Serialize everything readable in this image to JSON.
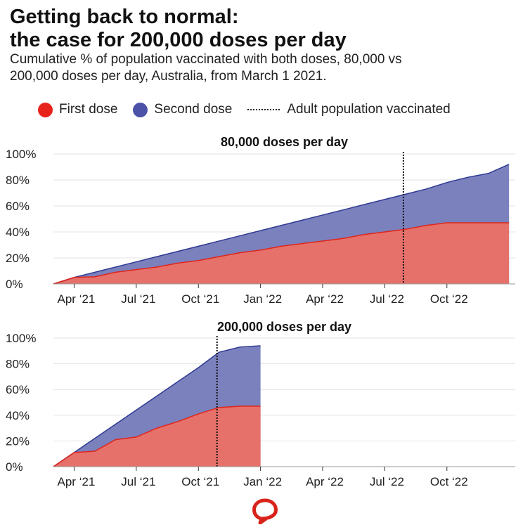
{
  "title_line1": "Getting back to normal:",
  "title_line2": "the case for 200,000 doses per day",
  "subtitle_line1": "Cumulative % of population vaccinated with both doses, 80,000 vs",
  "subtitle_line2": "200,000 doses per day, Australia, from March 1 2021.",
  "legend": {
    "first_dose": "First dose",
    "second_dose": "Second dose",
    "adult_line": "Adult population vaccinated"
  },
  "colors": {
    "first_dose": "#e5716a",
    "first_dose_line": "#e0251b",
    "second_dose": "#7a81bd",
    "second_dose_line": "#2f3a92",
    "legend_first": "#e8231b",
    "legend_second": "#4b52a8",
    "logo": "#d8231b"
  },
  "chart_data": [
    {
      "type": "area",
      "title": "80,000 doses per day",
      "x_unit": "months since 1 Mar 2021",
      "xlim": [
        0,
        22.3
      ],
      "ylim": [
        0,
        100
      ],
      "yticks": [
        0,
        20,
        40,
        60,
        80,
        100
      ],
      "ytick_labels": [
        "0%",
        "20%",
        "40%",
        "60%",
        "80%",
        "100%"
      ],
      "xticks": [
        1,
        4,
        7,
        10,
        13,
        16,
        19
      ],
      "xtick_labels": [
        "Apr ‘21",
        "Jul ‘21",
        "Oct ‘21",
        "Jan ‘22",
        "Apr ‘22",
        "Jul ‘22",
        "Oct ‘22"
      ],
      "series": [
        {
          "name": "First dose",
          "x": [
            0,
            1,
            2,
            3,
            4,
            5,
            6,
            7,
            8,
            9,
            10,
            11,
            12,
            13,
            14,
            15,
            16,
            17,
            18,
            19,
            20,
            21,
            22
          ],
          "values": [
            0,
            5,
            5.5,
            9,
            11,
            13,
            16,
            18,
            21,
            24,
            26,
            29,
            31,
            33,
            35,
            38,
            40,
            42,
            45,
            47,
            47,
            47,
            47
          ]
        },
        {
          "name": "Second dose",
          "x": [
            0,
            1,
            2,
            3,
            4,
            5,
            6,
            7,
            8,
            9,
            10,
            11,
            12,
            13,
            14,
            15,
            16,
            17,
            18,
            19,
            20,
            21,
            22
          ],
          "values": [
            0,
            5,
            9,
            13,
            17,
            21,
            25,
            29,
            33,
            37,
            41,
            45,
            49,
            53,
            57,
            61,
            65,
            69,
            73,
            78,
            82,
            85,
            92
          ]
        }
      ],
      "adult_line_x": 16.9
    },
    {
      "type": "area",
      "title": "200,000 doses per day",
      "x_unit": "months since 1 Mar 2021",
      "xlim": [
        0,
        22.3
      ],
      "ylim": [
        0,
        100
      ],
      "yticks": [
        0,
        20,
        40,
        60,
        80,
        100
      ],
      "ytick_labels": [
        "0%",
        "20%",
        "40%",
        "60%",
        "80%",
        "100%"
      ],
      "xticks": [
        1,
        4,
        7,
        10,
        13,
        16,
        19
      ],
      "xtick_labels": [
        "Apr ‘21",
        "Jul ‘21",
        "Oct ‘21",
        "Jan ‘22",
        "Apr ‘22",
        "Jul ‘22",
        "Oct ‘22"
      ],
      "series": [
        {
          "name": "First dose",
          "x": [
            0,
            1,
            2,
            3,
            4,
            5,
            6,
            7,
            8,
            9,
            10
          ],
          "values": [
            0,
            11,
            12,
            21,
            23,
            30,
            35,
            41,
            46,
            47,
            47
          ]
        },
        {
          "name": "Second dose",
          "x": [
            0,
            1,
            2,
            3,
            4,
            5,
            6,
            7,
            8,
            9,
            10
          ],
          "values": [
            0,
            11,
            22,
            33,
            44,
            55,
            66,
            77,
            89,
            93,
            94
          ]
        }
      ],
      "adult_line_x": 7.9
    }
  ]
}
